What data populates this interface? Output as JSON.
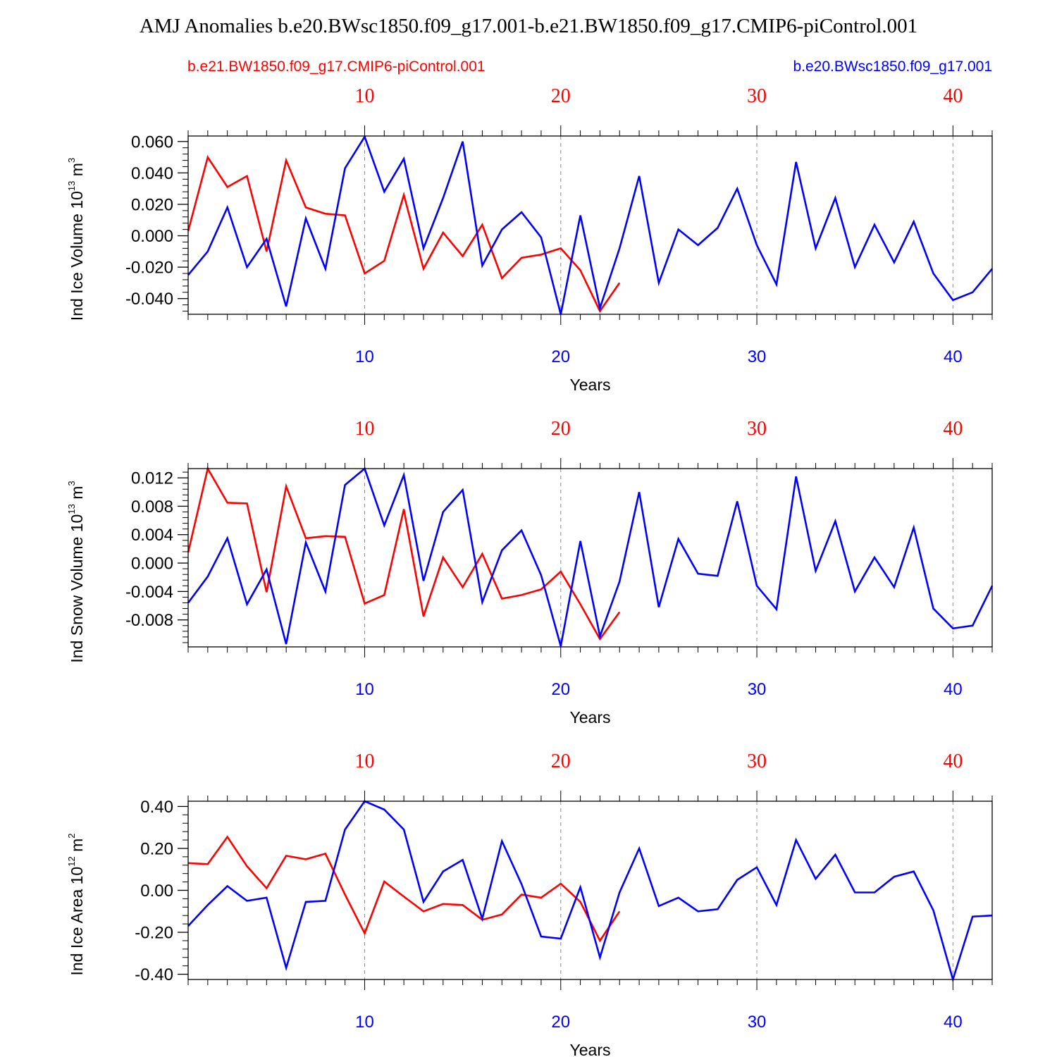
{
  "title": "AMJ Anomalies b.e20.BWsc1850.f09_g17.001-b.e21.BW1850.f09_g17.CMIP6-piControl.001",
  "legend": {
    "red_label": "b.e21.BW1850.f09_g17.CMIP6-piControl.001",
    "blue_label": "b.e20.BWsc1850.f09_g17.001"
  },
  "colors": {
    "red": "#ff0000",
    "blue": "#0000ff",
    "grid": "#888888",
    "axis": "#000000"
  },
  "chart_data": [
    {
      "type": "line",
      "id": "ice-volume",
      "ylabel_main": "Ind Ice Volume 10",
      "ylabel_exp": "13",
      "ylabel_unit": " m",
      "ylabel_unit_exp": "3",
      "xlabel": "Years",
      "xlim": [
        1,
        42
      ],
      "ylim": [
        -0.05,
        0.0635
      ],
      "yticks": [
        -0.04,
        -0.02,
        0.0,
        0.02,
        0.04,
        0.06
      ],
      "ytick_labels": [
        "-0.040",
        "-0.020",
        "0.000",
        "0.020",
        "0.040",
        "0.060"
      ],
      "yminor_step": 0.004,
      "xticks": [
        10,
        20,
        30,
        40
      ],
      "xtick_labels": [
        "10",
        "20",
        "30",
        "40"
      ],
      "series": [
        {
          "name": "b.e21.BW1850.f09_g17.CMIP6-piControl.001",
          "color": "red",
          "values": [
            0.003,
            0.05,
            0.031,
            0.038,
            -0.01,
            0.048,
            0.018,
            0.014,
            0.013,
            -0.024,
            -0.016,
            0.026,
            -0.021,
            0.002,
            -0.013,
            0.007,
            -0.027,
            -0.014,
            -0.012,
            -0.008,
            -0.022,
            -0.048,
            -0.03
          ]
        },
        {
          "name": "b.e20.BWsc1850.f09_g17.001",
          "color": "blue",
          "values": [
            -0.025,
            -0.01,
            0.018,
            -0.02,
            -0.002,
            -0.045,
            0.011,
            -0.021,
            0.043,
            0.063,
            0.028,
            0.049,
            -0.008,
            0.024,
            0.06,
            -0.019,
            0.004,
            0.015,
            -0.001,
            -0.05,
            0.013,
            -0.046,
            -0.008,
            0.038,
            -0.03,
            0.004,
            -0.006,
            0.005,
            0.03,
            -0.006,
            -0.031,
            0.047,
            -0.008,
            0.024,
            -0.02,
            0.007,
            -0.017,
            0.009,
            -0.024,
            -0.041,
            -0.036,
            -0.021
          ]
        }
      ]
    },
    {
      "type": "line",
      "id": "snow-volume",
      "ylabel_main": "Ind Snow Volume 10",
      "ylabel_exp": "13",
      "ylabel_unit": " m",
      "ylabel_unit_exp": "3",
      "xlabel": "Years",
      "xlim": [
        1,
        42
      ],
      "ylim": [
        -0.0118,
        0.0133
      ],
      "yticks": [
        -0.008,
        -0.004,
        0.0,
        0.004,
        0.008,
        0.012
      ],
      "ytick_labels": [
        "-0.008",
        "-0.004",
        "0.000",
        "0.004",
        "0.008",
        "0.012"
      ],
      "yminor_step": 0.0008,
      "xticks": [
        10,
        20,
        30,
        40
      ],
      "xtick_labels": [
        "10",
        "20",
        "30",
        "40"
      ],
      "series": [
        {
          "name": "b.e21.BW1850.f09_g17.CMIP6-piControl.001",
          "color": "red",
          "values": [
            0.0015,
            0.0133,
            0.0085,
            0.0084,
            -0.0041,
            0.0108,
            0.0035,
            0.0038,
            0.0037,
            -0.0057,
            -0.0045,
            0.0076,
            -0.0075,
            0.0008,
            -0.0034,
            0.0013,
            -0.005,
            -0.0045,
            -0.0037,
            -0.0012,
            -0.0058,
            -0.0107,
            -0.0069
          ]
        },
        {
          "name": "b.e20.BWsc1850.f09_g17.001",
          "color": "blue",
          "values": [
            -0.0056,
            -0.0019,
            0.0035,
            -0.0058,
            -0.0009,
            -0.0114,
            0.0029,
            -0.004,
            0.011,
            0.0133,
            0.0053,
            0.0124,
            -0.0025,
            0.0072,
            0.0103,
            -0.0055,
            0.0018,
            0.0046,
            -0.0017,
            -0.0117,
            0.0031,
            -0.0103,
            -0.0026,
            0.01,
            -0.0062,
            0.0034,
            -0.0015,
            -0.0018,
            0.0087,
            -0.0032,
            -0.0065,
            0.0122,
            -0.0011,
            0.0059,
            -0.004,
            0.0008,
            -0.0034,
            0.005,
            -0.0064,
            -0.0092,
            -0.0088,
            -0.0032
          ]
        }
      ]
    },
    {
      "type": "line",
      "id": "ice-area",
      "ylabel_main": "Ind Ice Area 10",
      "ylabel_exp": "12",
      "ylabel_unit": " m",
      "ylabel_unit_exp": "2",
      "xlabel": "Years",
      "xlim": [
        1,
        42
      ],
      "ylim": [
        -0.425,
        0.425
      ],
      "yticks": [
        -0.4,
        -0.2,
        0.0,
        0.2,
        0.4
      ],
      "ytick_labels": [
        "-0.40",
        "-0.20",
        "0.00",
        "0.20",
        "0.40"
      ],
      "yminor_step": 0.04,
      "xticks": [
        10,
        20,
        30,
        40
      ],
      "xtick_labels": [
        "10",
        "20",
        "30",
        "40"
      ],
      "series": [
        {
          "name": "b.e21.BW1850.f09_g17.CMIP6-piControl.001",
          "color": "red",
          "values": [
            0.13,
            0.125,
            0.255,
            0.115,
            0.01,
            0.165,
            0.148,
            0.175,
            -0.02,
            -0.205,
            0.042,
            -0.03,
            -0.1,
            -0.065,
            -0.07,
            -0.14,
            -0.115,
            -0.02,
            -0.035,
            0.032,
            -0.055,
            -0.24,
            -0.1
          ]
        },
        {
          "name": "b.e20.BWsc1850.f09_g17.001",
          "color": "blue",
          "values": [
            -0.17,
            -0.07,
            0.02,
            -0.05,
            -0.035,
            -0.37,
            -0.055,
            -0.05,
            0.29,
            0.425,
            0.385,
            0.29,
            -0.055,
            0.09,
            0.145,
            -0.135,
            0.235,
            0.03,
            -0.22,
            -0.23,
            0.015,
            -0.32,
            -0.01,
            0.2,
            -0.075,
            -0.035,
            -0.1,
            -0.09,
            0.05,
            0.11,
            -0.07,
            0.24,
            0.055,
            0.17,
            -0.01,
            -0.01,
            0.065,
            0.09,
            -0.095,
            -0.425,
            -0.125,
            -0.12
          ]
        }
      ]
    }
  ]
}
